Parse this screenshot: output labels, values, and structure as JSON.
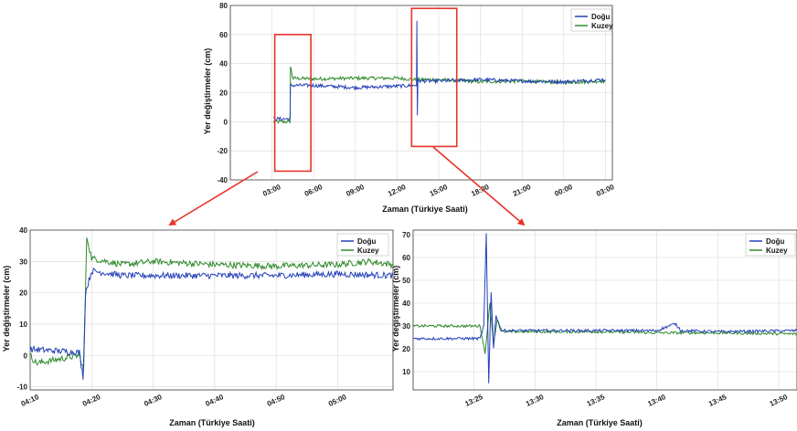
{
  "colors": {
    "dogu": "#2340b8",
    "kuzey": "#2f8a2a",
    "highlight": "#e8332a",
    "grid": "#d8d8d8"
  },
  "chart_data": [
    {
      "type": "line",
      "id": "main",
      "xlabel": "Zaman (Türkiye Saati)",
      "ylabel": "Yer değiştirmeler (cm)",
      "x_unit": "hours since 00:00 of first day",
      "xlim": [
        0,
        27.5
      ],
      "ylim": [
        -40,
        80
      ],
      "xticks": [
        {
          "v": 3,
          "label": "03:00"
        },
        {
          "v": 6,
          "label": "06:00"
        },
        {
          "v": 9,
          "label": "09:00"
        },
        {
          "v": 12,
          "label": "12:00"
        },
        {
          "v": 15,
          "label": "15:00"
        },
        {
          "v": 18,
          "label": "18:00"
        },
        {
          "v": 21,
          "label": "21:00"
        },
        {
          "v": 24,
          "label": "00:00"
        },
        {
          "v": 27,
          "label": "03:00"
        }
      ],
      "yticks": [
        -40,
        -20,
        0,
        20,
        40,
        60,
        80
      ],
      "legend_position": "top-right",
      "series": [
        {
          "name": "Doğu",
          "color": "#2340b8",
          "points": [
            [
              3.1,
              2
            ],
            [
              4.3,
              2
            ],
            [
              4.32,
              25
            ],
            [
              6,
              25
            ],
            [
              9,
              23.5
            ],
            [
              12,
              24.5
            ],
            [
              13.4,
              25
            ],
            [
              13.43,
              70
            ],
            [
              13.46,
              5
            ],
            [
              13.5,
              28
            ],
            [
              15,
              28
            ],
            [
              18,
              29
            ],
            [
              21,
              28
            ],
            [
              24,
              27.5
            ],
            [
              27,
              29
            ]
          ]
        },
        {
          "name": "Kuzey",
          "color": "#2f8a2a",
          "points": [
            [
              3.1,
              0
            ],
            [
              4.3,
              0
            ],
            [
              4.33,
              38
            ],
            [
              4.5,
              30
            ],
            [
              6,
              29.5
            ],
            [
              9,
              30
            ],
            [
              12,
              30
            ],
            [
              13.4,
              29
            ],
            [
              15,
              29
            ],
            [
              18,
              27.5
            ],
            [
              21,
              28
            ],
            [
              24,
              27
            ],
            [
              27,
              28
            ]
          ]
        }
      ],
      "highlight_boxes": [
        {
          "x": [
            3.2,
            5.8
          ],
          "y": [
            -34,
            60
          ]
        },
        {
          "x": [
            13.05,
            16.3
          ],
          "y": [
            -17,
            78
          ]
        }
      ]
    },
    {
      "type": "line",
      "id": "detail1",
      "xlabel": "Zaman (Türkiye Saati)",
      "ylabel": "Yer değiştirmeler (cm)",
      "x_unit": "minutes since 04:10",
      "xlim": [
        0,
        59
      ],
      "ylim": [
        -11,
        40
      ],
      "xticks": [
        {
          "v": 0,
          "label": "04:10"
        },
        {
          "v": 10,
          "label": "04:20"
        },
        {
          "v": 20,
          "label": "04:30"
        },
        {
          "v": 30,
          "label": "04:40"
        },
        {
          "v": 40,
          "label": "04:50"
        },
        {
          "v": 50,
          "label": "05:00"
        }
      ],
      "yticks": [
        -10,
        0,
        10,
        20,
        30,
        40
      ],
      "legend_position": "top-right",
      "series": [
        {
          "name": "Doğu",
          "color": "#2340b8",
          "points": [
            [
              0,
              2
            ],
            [
              8,
              1
            ],
            [
              8.6,
              -7
            ],
            [
              9.0,
              20
            ],
            [
              10,
              27
            ],
            [
              15,
              25.5
            ],
            [
              20,
              25.5
            ],
            [
              30,
              25.5
            ],
            [
              40,
              25.5
            ],
            [
              50,
              26
            ],
            [
              59,
              25.5
            ]
          ]
        },
        {
          "name": "Kuzey",
          "color": "#2f8a2a",
          "points": [
            [
              0,
              0
            ],
            [
              1,
              -2.5
            ],
            [
              8,
              0
            ],
            [
              8.7,
              -5
            ],
            [
              9.2,
              38
            ],
            [
              10,
              31
            ],
            [
              15,
              29
            ],
            [
              20,
              30
            ],
            [
              30,
              29
            ],
            [
              40,
              28.5
            ],
            [
              50,
              29
            ],
            [
              55,
              30
            ],
            [
              59,
              29
            ]
          ]
        }
      ]
    },
    {
      "type": "line",
      "id": "detail2",
      "xlabel": "Zaman (Türkiye Saati)",
      "ylabel": "Yer değiştirmeler (cm)",
      "x_unit": "minutes since 13:20",
      "xlim": [
        0,
        31.5
      ],
      "ylim": [
        2,
        72
      ],
      "xticks": [
        {
          "v": 5,
          "label": "13:25"
        },
        {
          "v": 10,
          "label": "13:30"
        },
        {
          "v": 15,
          "label": "13:35"
        },
        {
          "v": 20,
          "label": "13:40"
        },
        {
          "v": 25,
          "label": "13:45"
        },
        {
          "v": 30,
          "label": "13:50"
        }
      ],
      "yticks": [
        10,
        20,
        30,
        40,
        50,
        60,
        70
      ],
      "legend_position": "top-right",
      "series": [
        {
          "name": "Doğu",
          "color": "#2340b8",
          "points": [
            [
              0,
              24.5
            ],
            [
              5.5,
              24.5
            ],
            [
              5.8,
              30
            ],
            [
              6.0,
              70
            ],
            [
              6.2,
              5
            ],
            [
              6.4,
              45
            ],
            [
              6.6,
              20
            ],
            [
              6.8,
              35
            ],
            [
              7.2,
              28
            ],
            [
              10,
              28
            ],
            [
              15,
              28
            ],
            [
              20,
              28
            ],
            [
              21.5,
              31
            ],
            [
              22,
              28
            ],
            [
              25,
              27.5
            ],
            [
              31.5,
              28
            ]
          ]
        },
        {
          "name": "Kuzey",
          "color": "#2f8a2a",
          "points": [
            [
              0,
              30
            ],
            [
              5.5,
              30
            ],
            [
              5.9,
              18
            ],
            [
              6.3,
              40
            ],
            [
              6.6,
              22
            ],
            [
              6.9,
              33
            ],
            [
              7.3,
              27.5
            ],
            [
              10,
              27.5
            ],
            [
              15,
              27.5
            ],
            [
              20,
              27
            ],
            [
              25,
              27
            ],
            [
              31.5,
              26.5
            ]
          ]
        }
      ]
    }
  ]
}
